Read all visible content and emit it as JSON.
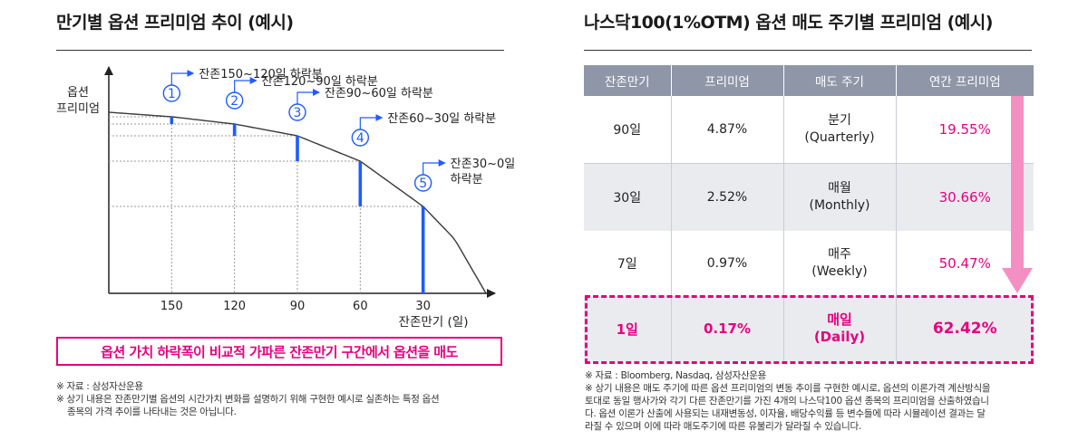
{
  "left": {
    "title": "만기별 옵션 프리미엄 추이 (예시)",
    "ylabel_line1": "옵션",
    "ylabel_line2": "프리미엄",
    "xlabel": "잔존만기 (일)",
    "callout": "옵션 가치 하락폭이 비교적 가파른 잔존만기 구간에서 옵션을 매도",
    "notes": [
      "※ 자료 : 삼성자산운용",
      "※ 상기 내용은 잔존만기별 옵션의 시간가치 변화를 설명하기 위해 구현한 예시로 실존하는 특정 옵션",
      "종목의 가격 추이를 나타내는 것은 아닙니다."
    ]
  },
  "chart_data": {
    "type": "line",
    "title": "만기별 옵션 프리미엄 추이 (예시)",
    "xlabel": "잔존만기 (일)",
    "ylabel": "옵션 프리미엄",
    "x_ticks": [
      "150",
      "120",
      "90",
      "60",
      "30"
    ],
    "x_ticks_values": [
      150,
      120,
      90,
      60,
      30
    ],
    "x_reversed": true,
    "xlim": [
      180,
      0
    ],
    "ylim": [
      0,
      1
    ],
    "grid": false,
    "series": [
      {
        "x": [
          180,
          150,
          120,
          90,
          60,
          30,
          15,
          0
        ],
        "y": [
          1.0,
          0.975,
          0.935,
          0.87,
          0.73,
          0.48,
          0.3,
          0.0
        ]
      }
    ],
    "drops": [
      {
        "num": "①",
        "label": "잔존150~120일 하락분",
        "x": 150,
        "drop": 0.04
      },
      {
        "num": "②",
        "label": "잔존120~90일 하락분",
        "x": 120,
        "drop": 0.065
      },
      {
        "num": "③",
        "label": "잔존90~60일 하락분",
        "x": 90,
        "drop": 0.14
      },
      {
        "num": "④",
        "label": "잔존60~30일 하락분",
        "x": 60,
        "drop": 0.25
      },
      {
        "num": "⑤",
        "label": "잔존30~0일 하락분",
        "x": 30,
        "drop": 0.48
      }
    ],
    "colors": {
      "curve": "#3a3a3a",
      "bar": "#1f5cff",
      "guide": "#9a9a9a",
      "accent": "#e6007e"
    }
  },
  "right": {
    "title": "나스닥100(1%OTM) 옵션 매도 주기별 프리미엄 (예시)",
    "headers": [
      "잔존만기",
      "프리미엄",
      "매도 주기",
      "연간 프리미엄"
    ],
    "rows": [
      {
        "days": "90일",
        "premium": "4.87%",
        "cycle": "분기",
        "cycle_en": "(Quarterly)",
        "annual": "19.55%"
      },
      {
        "days": "30일",
        "premium": "2.52%",
        "cycle": "매월",
        "cycle_en": "(Monthly)",
        "annual": "30.66%"
      },
      {
        "days": "7일",
        "premium": "0.97%",
        "cycle": "매주",
        "cycle_en": "(Weekly)",
        "annual": "50.47%"
      },
      {
        "days": "1일",
        "premium": "0.17%",
        "cycle": "매일",
        "cycle_en": "(Daily)",
        "annual": "62.42%"
      }
    ],
    "notes": [
      "※ 자료 : Bloomberg, Nasdaq, 삼성자산운용",
      "※ 상기 내용은 매도 주기에 따른 옵션 프리미엄의 변동 추이를 구현한 예시로, 옵션의 이론가격 계산방식을",
      "토대로 동일 행사가와 각기 다른 잔존만기를 가진 4개의 나스닥100 옵션 종목의 프리미엄을 산출하였습니",
      "다. 옵션 이론가 산출에 사용되는 내재변동성, 이자율, 배당수익률 등 변수들에 따라 시뮬레이션 결과는 달",
      "라질 수 있으며 이에 따라 매도주기에 따른 유불리가 달라질 수 있습니다."
    ]
  }
}
